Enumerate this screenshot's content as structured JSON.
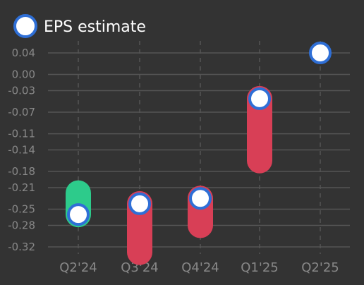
{
  "chart_data": {
    "type": "range-bar-with-markers",
    "categories": [
      "Q2'24",
      "Q3'24",
      "Q4'24",
      "Q1'25",
      "Q2'25"
    ],
    "series": [
      {
        "name": "EPS estimate",
        "values": [
          -0.26,
          -0.24,
          -0.23,
          -0.045,
          0.04
        ]
      }
    ],
    "actual": [
      -0.22,
      -0.33,
      -0.28,
      -0.16,
      null
    ],
    "ylim": [
      -0.335,
      0.06
    ],
    "yticks": [
      "0.04",
      "0.00",
      "-0.03",
      "-0.07",
      "-0.11",
      "-0.14",
      "-0.18",
      "-0.21",
      "-0.25",
      "-0.28",
      "-0.32"
    ],
    "ytick_values": [
      0.04,
      0.0,
      -0.03,
      -0.07,
      -0.11,
      -0.14,
      -0.18,
      -0.21,
      -0.25,
      -0.28,
      -0.32
    ],
    "grid": true,
    "legend_position": "top-left",
    "colors": {
      "background": "#333333",
      "grid": "#555555",
      "tick_text": "#888888",
      "legend_text": "#ffffff",
      "beat": "#2dcb8b",
      "miss": "#d83f56",
      "marker_fill": "#ffffff",
      "marker_stroke": "#2f6fd6"
    }
  }
}
